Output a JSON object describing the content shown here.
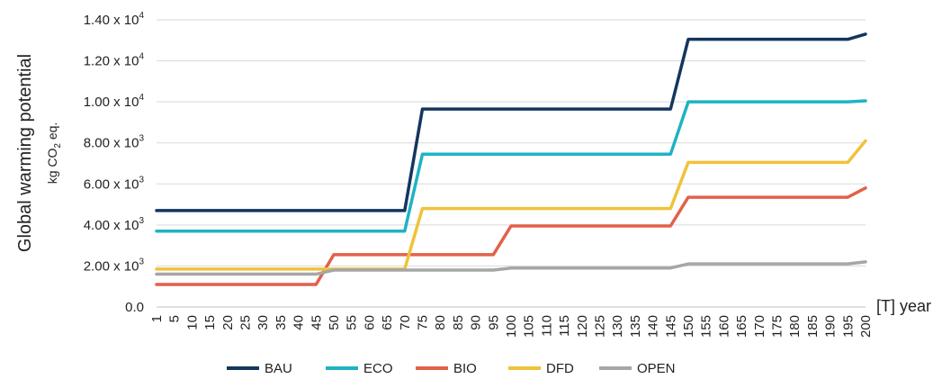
{
  "chart_data": {
    "type": "line",
    "ylabel": "Global warming potential",
    "ylabel_unit": "kg CO",
    "ylabel_unit_sub": "2",
    "ylabel_unit_suffix": " eq.",
    "xlabel": "[T] year",
    "ylim": [
      0,
      14000
    ],
    "y_ticks": [
      {
        "value": 0,
        "label": "0.0",
        "exp": ""
      },
      {
        "value": 2000,
        "label": "2.00 x 10",
        "exp": "3"
      },
      {
        "value": 4000,
        "label": "4.00 x 10",
        "exp": "3"
      },
      {
        "value": 6000,
        "label": "6.00 x 10",
        "exp": "3"
      },
      {
        "value": 8000,
        "label": "8.00 x 10",
        "exp": "3"
      },
      {
        "value": 10000,
        "label": "1.00 x 10",
        "exp": "4"
      },
      {
        "value": 12000,
        "label": "1.20 x 10",
        "exp": "4"
      },
      {
        "value": 14000,
        "label": "1.40 x 10",
        "exp": "4"
      }
    ],
    "x": [
      1,
      5,
      10,
      15,
      20,
      25,
      30,
      35,
      40,
      45,
      50,
      55,
      60,
      65,
      70,
      75,
      80,
      85,
      90,
      95,
      100,
      105,
      110,
      115,
      120,
      125,
      130,
      135,
      140,
      145,
      150,
      155,
      160,
      165,
      170,
      175,
      180,
      185,
      190,
      195,
      200
    ],
    "grid": true,
    "legend_position": "bottom",
    "series": [
      {
        "name": "BAU",
        "color": "#14365e",
        "values": [
          4700,
          4700,
          4700,
          4700,
          4700,
          4700,
          4700,
          4700,
          4700,
          4700,
          4700,
          4700,
          4700,
          4700,
          4700,
          9650,
          9650,
          9650,
          9650,
          9650,
          9650,
          9650,
          9650,
          9650,
          9650,
          9650,
          9650,
          9650,
          9650,
          9650,
          13050,
          13050,
          13050,
          13050,
          13050,
          13050,
          13050,
          13050,
          13050,
          13050,
          13300
        ]
      },
      {
        "name": "ECO",
        "color": "#1eb3c4",
        "values": [
          3700,
          3700,
          3700,
          3700,
          3700,
          3700,
          3700,
          3700,
          3700,
          3700,
          3700,
          3700,
          3700,
          3700,
          3700,
          7450,
          7450,
          7450,
          7450,
          7450,
          7450,
          7450,
          7450,
          7450,
          7450,
          7450,
          7450,
          7450,
          7450,
          7450,
          10000,
          10000,
          10000,
          10000,
          10000,
          10000,
          10000,
          10000,
          10000,
          10000,
          10050
        ]
      },
      {
        "name": "BIO",
        "color": "#e2614a",
        "values": [
          1100,
          1100,
          1100,
          1100,
          1100,
          1100,
          1100,
          1100,
          1100,
          1100,
          2550,
          2550,
          2550,
          2550,
          2550,
          2550,
          2550,
          2550,
          2550,
          2550,
          3950,
          3950,
          3950,
          3950,
          3950,
          3950,
          3950,
          3950,
          3950,
          3950,
          5350,
          5350,
          5350,
          5350,
          5350,
          5350,
          5350,
          5350,
          5350,
          5350,
          5800
        ]
      },
      {
        "name": "DFD",
        "color": "#f0c23a",
        "values": [
          1850,
          1850,
          1850,
          1850,
          1850,
          1850,
          1850,
          1850,
          1850,
          1850,
          1850,
          1850,
          1850,
          1850,
          1850,
          4800,
          4800,
          4800,
          4800,
          4800,
          4800,
          4800,
          4800,
          4800,
          4800,
          4800,
          4800,
          4800,
          4800,
          4800,
          7050,
          7050,
          7050,
          7050,
          7050,
          7050,
          7050,
          7050,
          7050,
          7050,
          8100
        ]
      },
      {
        "name": "OPEN",
        "color": "#a6a6a6",
        "values": [
          1600,
          1600,
          1600,
          1600,
          1600,
          1600,
          1600,
          1600,
          1600,
          1600,
          1800,
          1800,
          1800,
          1800,
          1800,
          1800,
          1800,
          1800,
          1800,
          1800,
          1900,
          1900,
          1900,
          1900,
          1900,
          1900,
          1900,
          1900,
          1900,
          1900,
          2100,
          2100,
          2100,
          2100,
          2100,
          2100,
          2100,
          2100,
          2100,
          2100,
          2200
        ]
      }
    ]
  }
}
